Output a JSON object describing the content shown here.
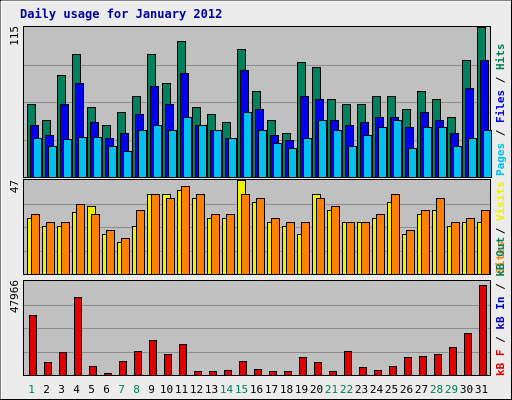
{
  "title": "Daily usage for January 2012",
  "colors": {
    "background": "#ececec",
    "panel": "#c0c0c0",
    "gridline": "#8c8c8c",
    "hits": "#00805c",
    "files": "#0000f0",
    "pages": "#00c0f0",
    "visits": "#f0f000",
    "sites": "#ff8000",
    "kb_in": "#0000c0",
    "kb_out": "#00805c",
    "kb_f": "#e00000",
    "weekday_label": "#000000",
    "weekend_label": "#00805c",
    "title": "#0000a0"
  },
  "chart_data": [
    {
      "type": "bar",
      "panel": "top",
      "y_max_label": "115",
      "ylim": [
        0,
        115
      ],
      "categories": [
        "1",
        "2",
        "3",
        "4",
        "5",
        "6",
        "7",
        "8",
        "9",
        "10",
        "11",
        "12",
        "13",
        "14",
        "15",
        "16",
        "17",
        "18",
        "19",
        "20",
        "21",
        "22",
        "23",
        "24",
        "25",
        "26",
        "27",
        "28",
        "29",
        "30",
        "31"
      ],
      "weekend_days": [
        "1",
        "7",
        "8",
        "14",
        "15",
        "21",
        "22",
        "28",
        "29"
      ],
      "series": [
        {
          "name": "Hits",
          "color_key": "hits",
          "values": [
            56,
            44,
            78,
            94,
            54,
            40,
            50,
            62,
            94,
            72,
            104,
            54,
            48,
            42,
            98,
            66,
            44,
            34,
            88,
            84,
            60,
            56,
            56,
            62,
            62,
            52,
            66,
            60,
            46,
            90,
            120
          ]
        },
        {
          "name": "Files",
          "color_key": "files",
          "values": [
            40,
            32,
            56,
            72,
            42,
            30,
            34,
            48,
            70,
            56,
            80,
            40,
            36,
            30,
            82,
            52,
            32,
            28,
            62,
            60,
            44,
            40,
            42,
            46,
            46,
            38,
            50,
            44,
            34,
            68,
            90
          ]
        },
        {
          "name": "Pages",
          "color_key": "pages",
          "values": [
            30,
            24,
            29,
            31,
            31,
            24,
            20,
            36,
            40,
            36,
            46,
            40,
            36,
            30,
            50,
            36,
            26,
            22,
            30,
            44,
            36,
            24,
            32,
            38,
            44,
            22,
            38,
            38,
            24,
            30,
            36
          ]
        }
      ],
      "legend": [
        "Pages",
        "Files",
        "Hits"
      ]
    },
    {
      "type": "bar",
      "panel": "middle",
      "y_max_label": "47",
      "ylim": [
        0,
        47
      ],
      "series": [
        {
          "name": "Visits",
          "color_key": "visits",
          "values": [
            28,
            24,
            24,
            31,
            34,
            20,
            16,
            24,
            40,
            40,
            42,
            38,
            28,
            28,
            48,
            36,
            26,
            24,
            20,
            40,
            32,
            26,
            26,
            28,
            36,
            20,
            30,
            32,
            24,
            26,
            26
          ]
        },
        {
          "name": "Sites",
          "color_key": "sites",
          "values": [
            30,
            26,
            26,
            35,
            30,
            22,
            18,
            32,
            40,
            38,
            44,
            40,
            30,
            30,
            40,
            38,
            28,
            26,
            26,
            38,
            34,
            26,
            26,
            30,
            40,
            22,
            32,
            38,
            26,
            28,
            32
          ]
        }
      ],
      "legend": [
        "Sites",
        "Visits"
      ]
    },
    {
      "type": "bar",
      "panel": "bottom",
      "y_max_label": "47966",
      "ylim": [
        0,
        47966
      ],
      "series": [
        {
          "name": "kB F",
          "color_key": "kb_f",
          "values": [
            30800,
            6800,
            11600,
            40000,
            4600,
            1200,
            7200,
            12200,
            17900,
            10600,
            15800,
            1900,
            2200,
            2400,
            7200,
            3200,
            2000,
            2200,
            9100,
            6400,
            1900,
            12200,
            4000,
            2800,
            4400,
            9000,
            9800,
            10900,
            14100,
            21200,
            45700
          ]
        }
      ],
      "legend": [
        "kB F",
        "kB In",
        "kB Out"
      ]
    }
  ]
}
